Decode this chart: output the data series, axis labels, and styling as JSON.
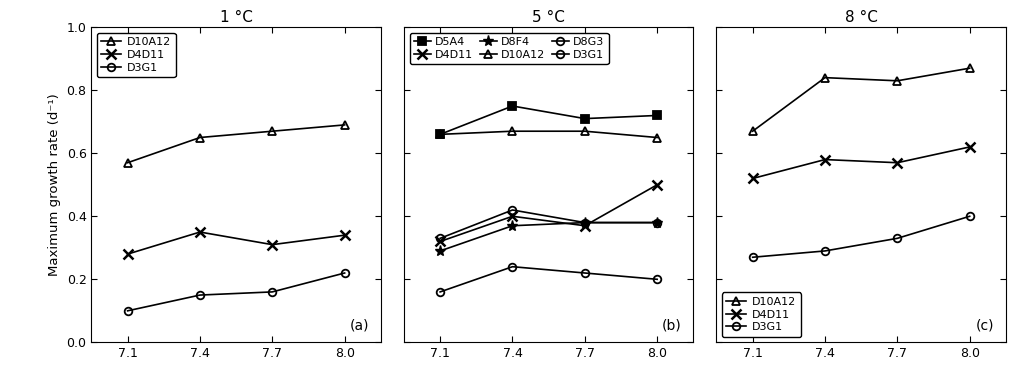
{
  "x": [
    7.1,
    7.4,
    7.7,
    8.0
  ],
  "panel_a": {
    "title": "1 °C",
    "label": "(a)",
    "series": [
      {
        "name": "D10A12",
        "values": [
          0.57,
          0.65,
          0.67,
          0.69
        ],
        "marker": "^",
        "fillstyle": "none",
        "color": "black"
      },
      {
        "name": "D4D11",
        "values": [
          0.28,
          0.35,
          0.31,
          0.34
        ],
        "marker": "x",
        "fillstyle": "full",
        "color": "black"
      },
      {
        "name": "D3G1",
        "values": [
          0.1,
          0.15,
          0.16,
          0.22
        ],
        "marker": "o",
        "fillstyle": "none",
        "color": "black"
      }
    ]
  },
  "panel_b": {
    "title": "5 °C",
    "label": "(b)",
    "series": [
      {
        "name": "D5A4",
        "values": [
          0.66,
          0.75,
          0.71,
          0.72
        ],
        "marker": "s",
        "fillstyle": "full",
        "color": "black"
      },
      {
        "name": "D10A12",
        "values": [
          0.66,
          0.67,
          0.67,
          0.65
        ],
        "marker": "^",
        "fillstyle": "none",
        "color": "black"
      },
      {
        "name": "D4D11",
        "values": [
          0.32,
          0.4,
          0.37,
          0.5
        ],
        "marker": "x",
        "fillstyle": "full",
        "color": "black"
      },
      {
        "name": "D8G3",
        "values": [
          0.33,
          0.42,
          0.38,
          0.38
        ],
        "marker": "o",
        "fillstyle": "none",
        "color": "black"
      },
      {
        "name": "D8F4",
        "values": [
          0.29,
          0.37,
          0.38,
          0.38
        ],
        "marker": "*",
        "fillstyle": "full",
        "color": "black"
      },
      {
        "name": "D3G1",
        "values": [
          0.16,
          0.24,
          0.22,
          0.2
        ],
        "marker": "o",
        "fillstyle": "none",
        "color": "black"
      }
    ]
  },
  "panel_c": {
    "title": "8 °C",
    "label": "(c)",
    "series": [
      {
        "name": "D10A12",
        "values": [
          0.67,
          0.84,
          0.83,
          0.87
        ],
        "marker": "^",
        "fillstyle": "none",
        "color": "black"
      },
      {
        "name": "D4D11",
        "values": [
          0.52,
          0.58,
          0.57,
          0.62
        ],
        "marker": "x",
        "fillstyle": "full",
        "color": "black"
      },
      {
        "name": "D3G1",
        "values": [
          0.27,
          0.29,
          0.33,
          0.4
        ],
        "marker": "o",
        "fillstyle": "none",
        "color": "black"
      }
    ]
  },
  "ylabel": "Maximum growth rate (d⁻¹)",
  "ylim": [
    0.0,
    1.0
  ],
  "yticks": [
    0.0,
    0.2,
    0.4,
    0.6,
    0.8,
    1.0
  ],
  "xticks": [
    7.1,
    7.4,
    7.7,
    8.0
  ]
}
